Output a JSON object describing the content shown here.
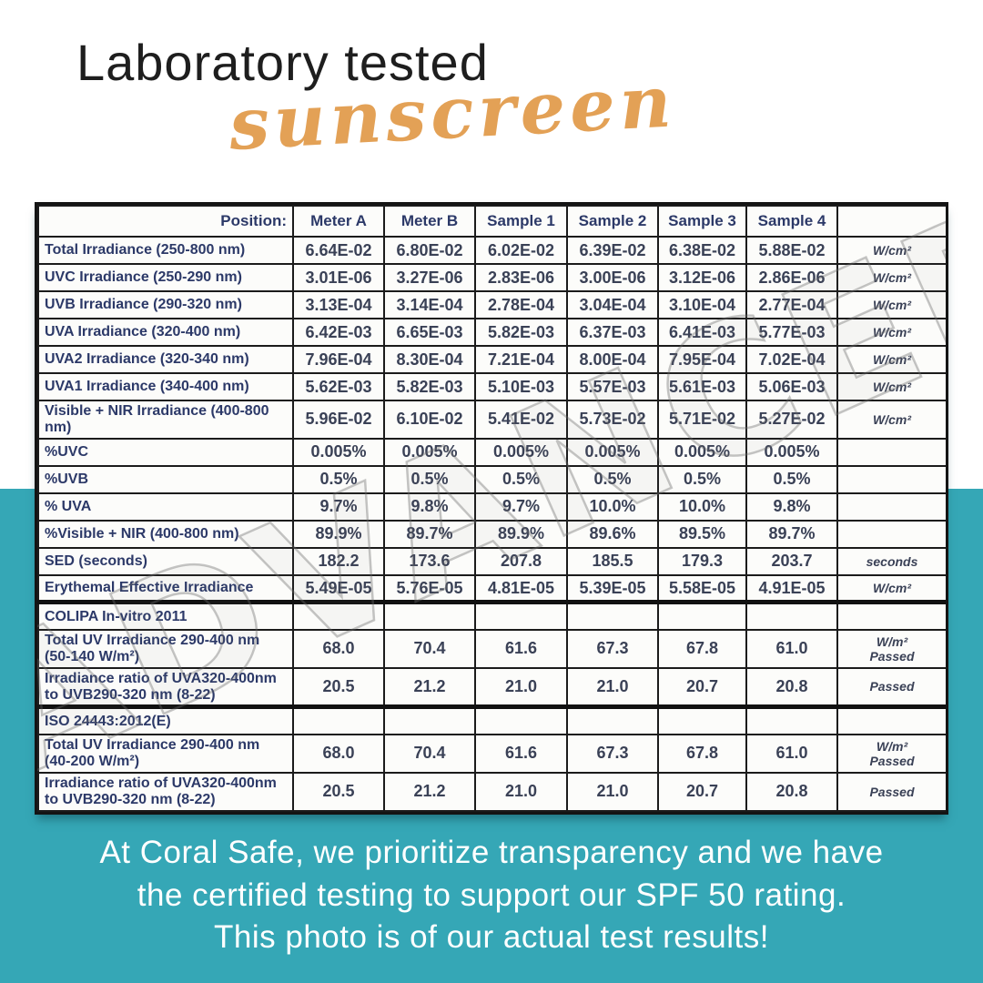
{
  "page": {
    "title": "Laboratory tested",
    "subtitle": "sunscreen",
    "watermark": "ADVANCED",
    "caption_lines": [
      "At Coral Safe, we prioritize transparency and we have",
      "the certified testing to support our SPF 50 rating.",
      "This photo is of our actual test results!"
    ],
    "colors": {
      "teal_band": "#35a7b6",
      "accent_orange": "#e3a156",
      "table_text_navy": "#2c3968",
      "table_value_gray": "#3a4156"
    }
  },
  "table": {
    "header": [
      "Position:",
      "Meter A",
      "Meter B",
      "Sample 1",
      "Sample 2",
      "Sample 3",
      "Sample 4",
      ""
    ],
    "rows": [
      {
        "label": "Total Irradiance (250-800 nm)",
        "values": [
          "6.64E-02",
          "6.80E-02",
          "6.02E-02",
          "6.39E-02",
          "6.38E-02",
          "5.88E-02"
        ],
        "unit": "W/cm²"
      },
      {
        "label": "UVC Irradiance (250-290 nm)",
        "values": [
          "3.01E-06",
          "3.27E-06",
          "2.83E-06",
          "3.00E-06",
          "3.12E-06",
          "2.86E-06"
        ],
        "unit": "W/cm²"
      },
      {
        "label": "UVB Irradiance (290-320 nm)",
        "values": [
          "3.13E-04",
          "3.14E-04",
          "2.78E-04",
          "3.04E-04",
          "3.10E-04",
          "2.77E-04"
        ],
        "unit": "W/cm²"
      },
      {
        "label": "UVA Irradiance (320-400 nm)",
        "values": [
          "6.42E-03",
          "6.65E-03",
          "5.82E-03",
          "6.37E-03",
          "6.41E-03",
          "5.77E-03"
        ],
        "unit": "W/cm²"
      },
      {
        "label": "UVA2 Irradiance (320-340 nm)",
        "values": [
          "7.96E-04",
          "8.30E-04",
          "7.21E-04",
          "8.00E-04",
          "7.95E-04",
          "7.02E-04"
        ],
        "unit": "W/cm²"
      },
      {
        "label": "UVA1 Irradiance (340-400 nm)",
        "values": [
          "5.62E-03",
          "5.82E-03",
          "5.10E-03",
          "5.57E-03",
          "5.61E-03",
          "5.06E-03"
        ],
        "unit": "W/cm²"
      },
      {
        "label": "Visible + NIR Irradiance (400-800 nm)",
        "values": [
          "5.96E-02",
          "6.10E-02",
          "5.41E-02",
          "5.73E-02",
          "5.71E-02",
          "5.27E-02"
        ],
        "unit": "W/cm²"
      },
      {
        "label": "%UVC",
        "values": [
          "0.005%",
          "0.005%",
          "0.005%",
          "0.005%",
          "0.005%",
          "0.005%"
        ],
        "unit": ""
      },
      {
        "label": "%UVB",
        "values": [
          "0.5%",
          "0.5%",
          "0.5%",
          "0.5%",
          "0.5%",
          "0.5%"
        ],
        "unit": ""
      },
      {
        "label": "% UVA",
        "values": [
          "9.7%",
          "9.8%",
          "9.7%",
          "10.0%",
          "10.0%",
          "9.8%"
        ],
        "unit": ""
      },
      {
        "label": "%Visible + NIR (400-800 nm)",
        "values": [
          "89.9%",
          "89.7%",
          "89.9%",
          "89.6%",
          "89.5%",
          "89.7%"
        ],
        "unit": ""
      },
      {
        "label": "SED (seconds)",
        "values": [
          "182.2",
          "173.6",
          "207.8",
          "185.5",
          "179.3",
          "203.7"
        ],
        "unit": "seconds"
      },
      {
        "label": "Erythemal Effective Irradiance",
        "values": [
          "5.49E-05",
          "5.76E-05",
          "4.81E-05",
          "5.39E-05",
          "5.58E-05",
          "4.91E-05"
        ],
        "unit": "W/cm²"
      },
      {
        "label": "COLIPA In-vitro 2011",
        "section": true,
        "values": [
          "",
          "",
          "",
          "",
          "",
          ""
        ],
        "unit": ""
      },
      {
        "label": "Total UV Irradiance 290-400 nm (50-140 W/m²)",
        "values": [
          "68.0",
          "70.4",
          "61.6",
          "67.3",
          "67.8",
          "61.0"
        ],
        "unit": "W/m²\nPassed"
      },
      {
        "label": "Irradiance ratio of UVA320-400nm to UVB290-320 nm (8-22)",
        "values": [
          "20.5",
          "21.2",
          "21.0",
          "21.0",
          "20.7",
          "20.8"
        ],
        "unit": "Passed"
      },
      {
        "label": "ISO 24443:2012(E)",
        "section": true,
        "values": [
          "",
          "",
          "",
          "",
          "",
          ""
        ],
        "unit": ""
      },
      {
        "label": "Total UV Irradiance 290-400 nm (40-200 W/m²)",
        "values": [
          "68.0",
          "70.4",
          "61.6",
          "67.3",
          "67.8",
          "61.0"
        ],
        "unit": "W/m²\nPassed"
      },
      {
        "label": "Irradiance ratio of UVA320-400nm to UVB290-320 nm (8-22)",
        "values": [
          "20.5",
          "21.2",
          "21.0",
          "21.0",
          "20.7",
          "20.8"
        ],
        "unit": "Passed"
      }
    ]
  }
}
